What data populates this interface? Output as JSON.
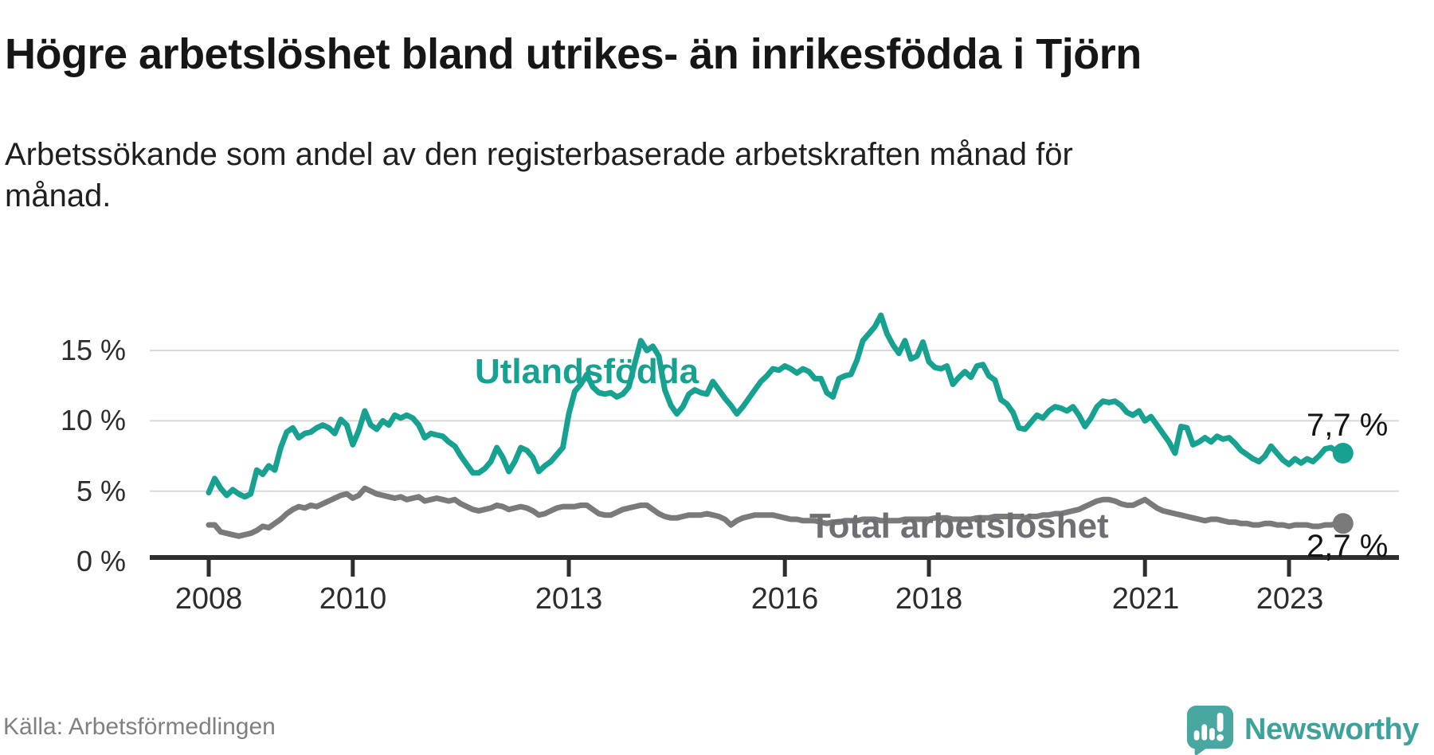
{
  "header": {
    "title": "Högre arbetslöshet bland utrikes- än inrikesfödda i Tjörn",
    "subtitle": "Arbetssökande som andel av den registerbaserade arbetskraften månad för månad."
  },
  "footer": {
    "source": "Källa: Arbetsförmedlingen",
    "brand": "Newsworthy"
  },
  "colors": {
    "accent_teal": "#16A191",
    "line_gray": "#797A7C",
    "label_gray": "#6F6F73",
    "grid": "#D8D8D8",
    "axis": "#2E2E2E",
    "brand_teal": "#48A7A1"
  },
  "chart_data": {
    "type": "line",
    "title": "Högre arbetslöshet bland utrikes- än inrikesfödda i Tjörn",
    "subtitle": "Arbetssökande som andel av den registerbaserade arbetskraften månad för månad.",
    "x_unit": "month",
    "x_range": [
      "2008-01",
      "2023-10"
    ],
    "ylim": [
      0,
      18
    ],
    "grid": true,
    "legend_position": "inline-labels",
    "y_axis": {
      "ticks": [
        {
          "value": 0,
          "label": "0 %"
        },
        {
          "value": 5,
          "label": "5 %"
        },
        {
          "value": 10,
          "label": "10 %"
        },
        {
          "value": 15,
          "label": "15 %"
        }
      ]
    },
    "x_axis": {
      "ticks": [
        {
          "value": 2008,
          "label": "2008"
        },
        {
          "value": 2010,
          "label": "2010"
        },
        {
          "value": 2013,
          "label": "2013"
        },
        {
          "value": 2016,
          "label": "2016"
        },
        {
          "value": 2018,
          "label": "2018"
        },
        {
          "value": 2021,
          "label": "2021"
        },
        {
          "value": 2023,
          "label": "2023"
        }
      ]
    },
    "series": [
      {
        "name": "Utlandsfödda",
        "color": "#16A191",
        "end_value": 7.7,
        "end_label": "7,7 %",
        "values": [
          4.9,
          5.9,
          5.2,
          4.7,
          5.1,
          4.8,
          4.6,
          4.8,
          6.5,
          6.2,
          6.8,
          6.5,
          8.1,
          9.2,
          9.5,
          8.8,
          9.1,
          9.2,
          9.5,
          9.7,
          9.5,
          9.1,
          10.1,
          9.7,
          8.3,
          9.3,
          10.7,
          9.7,
          9.4,
          10.0,
          9.7,
          10.4,
          10.2,
          10.4,
          10.2,
          9.7,
          8.8,
          9.1,
          9.0,
          8.9,
          8.5,
          8.2,
          7.5,
          6.9,
          6.3,
          6.3,
          6.6,
          7.1,
          8.1,
          7.4,
          6.4,
          7.1,
          8.1,
          7.9,
          7.4,
          6.4,
          6.8,
          7.1,
          7.6,
          8.1,
          10.5,
          12.1,
          12.6,
          13.3,
          12.4,
          12.0,
          11.9,
          12.0,
          11.7,
          11.9,
          12.4,
          14.1,
          15.7,
          15.0,
          15.3,
          14.6,
          12.2,
          11.1,
          10.5,
          11.0,
          11.9,
          12.2,
          12.0,
          11.9,
          12.8,
          12.2,
          11.6,
          11.1,
          10.5,
          11.0,
          11.6,
          12.2,
          12.8,
          13.2,
          13.7,
          13.6,
          13.9,
          13.7,
          13.4,
          13.7,
          13.5,
          13.0,
          13.0,
          12.0,
          11.7,
          13.0,
          13.2,
          13.3,
          14.3,
          15.7,
          16.2,
          16.7,
          17.5,
          16.2,
          15.4,
          14.8,
          15.7,
          14.4,
          14.6,
          15.6,
          14.2,
          13.8,
          13.7,
          13.9,
          12.6,
          13.1,
          13.5,
          13.1,
          13.9,
          14.0,
          13.2,
          12.9,
          11.5,
          11.2,
          10.6,
          9.5,
          9.4,
          9.9,
          10.4,
          10.2,
          10.7,
          11.0,
          10.9,
          10.7,
          11.0,
          10.4,
          9.6,
          10.2,
          11.0,
          11.4,
          11.3,
          11.4,
          11.1,
          10.6,
          10.4,
          10.7,
          10.0,
          10.3,
          9.7,
          9.1,
          8.5,
          7.7,
          9.6,
          9.5,
          8.3,
          8.5,
          8.8,
          8.5,
          8.9,
          8.7,
          8.8,
          8.4,
          7.9,
          7.6,
          7.3,
          7.1,
          7.5,
          8.2,
          7.7,
          7.2,
          6.9,
          7.3,
          7.0,
          7.3,
          7.1,
          7.5,
          8.0,
          8.1,
          7.8,
          7.7
        ]
      },
      {
        "name": "Total arbetslöshet",
        "color": "#797A7C",
        "end_value": 2.7,
        "end_label": "2,7 %",
        "values": [
          2.6,
          2.6,
          2.1,
          2.0,
          1.9,
          1.8,
          1.9,
          2.0,
          2.2,
          2.5,
          2.4,
          2.7,
          3.0,
          3.4,
          3.7,
          3.9,
          3.8,
          4.0,
          3.9,
          4.1,
          4.3,
          4.5,
          4.7,
          4.8,
          4.5,
          4.7,
          5.2,
          5.0,
          4.8,
          4.7,
          4.6,
          4.5,
          4.6,
          4.4,
          4.5,
          4.6,
          4.3,
          4.4,
          4.5,
          4.4,
          4.3,
          4.4,
          4.1,
          3.9,
          3.7,
          3.6,
          3.7,
          3.8,
          4.0,
          3.9,
          3.7,
          3.8,
          3.9,
          3.8,
          3.6,
          3.3,
          3.4,
          3.6,
          3.8,
          3.9,
          3.9,
          3.9,
          4.0,
          4.0,
          3.7,
          3.4,
          3.3,
          3.3,
          3.5,
          3.7,
          3.8,
          3.9,
          4.0,
          4.0,
          3.7,
          3.4,
          3.2,
          3.1,
          3.1,
          3.2,
          3.3,
          3.3,
          3.3,
          3.4,
          3.3,
          3.2,
          3.0,
          2.6,
          2.9,
          3.1,
          3.2,
          3.3,
          3.3,
          3.3,
          3.3,
          3.2,
          3.1,
          3.0,
          3.0,
          2.9,
          2.9,
          2.9,
          2.8,
          2.7,
          2.8,
          2.8,
          2.9,
          2.9,
          2.9,
          3.0,
          3.0,
          3.0,
          2.9,
          2.9,
          2.9,
          2.9,
          3.0,
          3.0,
          3.0,
          3.0,
          3.0,
          3.1,
          3.1,
          3.1,
          3.0,
          3.0,
          3.0,
          3.0,
          3.1,
          3.1,
          3.1,
          3.2,
          3.2,
          3.2,
          3.2,
          3.2,
          3.1,
          3.2,
          3.2,
          3.3,
          3.3,
          3.4,
          3.4,
          3.5,
          3.6,
          3.7,
          3.9,
          4.1,
          4.3,
          4.4,
          4.4,
          4.3,
          4.1,
          4.0,
          4.0,
          4.2,
          4.4,
          4.1,
          3.8,
          3.6,
          3.5,
          3.4,
          3.3,
          3.2,
          3.1,
          3.0,
          2.9,
          3.0,
          3.0,
          2.9,
          2.8,
          2.8,
          2.7,
          2.7,
          2.6,
          2.6,
          2.7,
          2.7,
          2.6,
          2.6,
          2.5,
          2.6,
          2.6,
          2.6,
          2.5,
          2.5,
          2.6,
          2.6,
          2.7,
          2.7
        ]
      }
    ]
  }
}
